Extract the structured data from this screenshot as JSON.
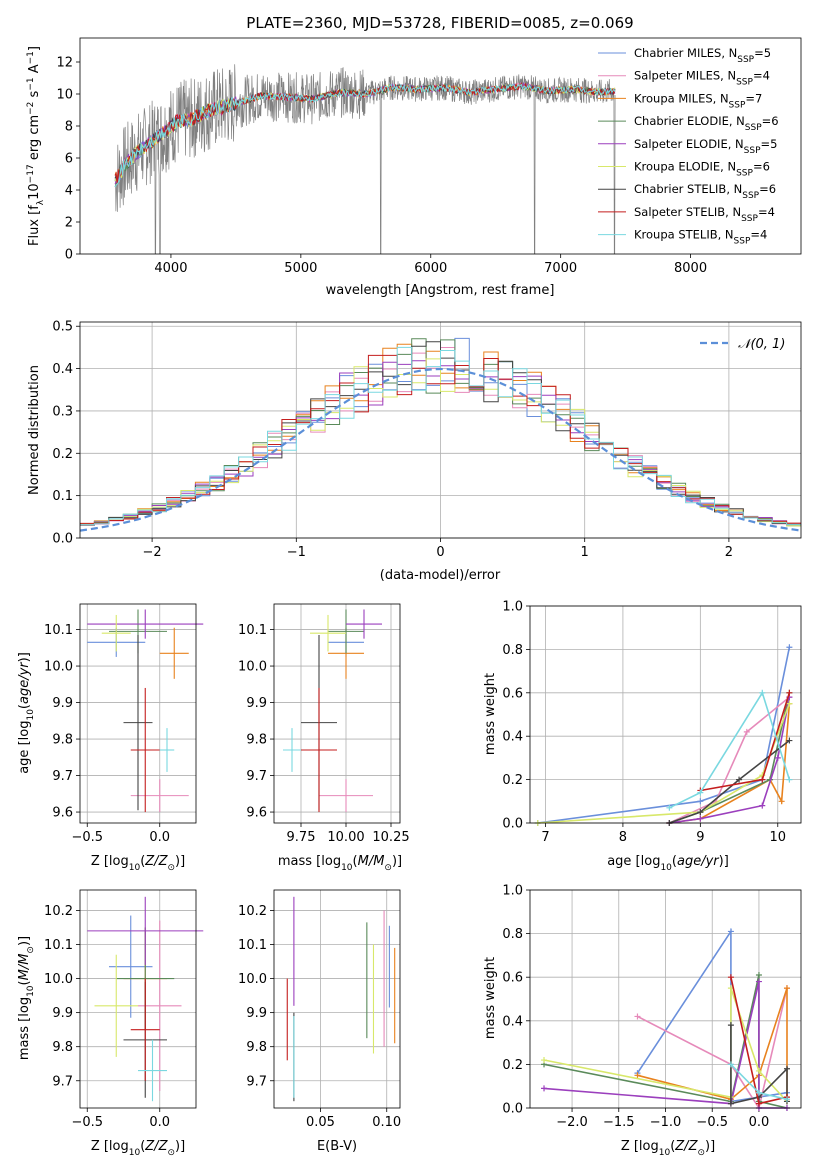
{
  "colors": [
    "#6a8fdb",
    "#e68aba",
    "#e8821e",
    "#5a8a5a",
    "#9b3fbd",
    "#d8e86a",
    "#444444",
    "#c41e1e",
    "#7ad8e0"
  ],
  "chart_data": [
    {
      "type": "line",
      "title": "PLATE=2360, MJD=53728, FIBERID=0085, z=0.069",
      "xlabel": "wavelength [Angstrom, rest frame]",
      "ylabel": "Flux [f_λ10^-17 erg cm^-2 s^-1 A^-1]",
      "xlim": [
        3300,
        8850
      ],
      "ylim": [
        0,
        13.5
      ],
      "xticks": [
        4000,
        5000,
        6000,
        7000,
        8000
      ],
      "yticks": [
        0,
        2,
        4,
        6,
        8,
        10,
        12
      ],
      "grid": false,
      "legend_position": "top-right",
      "observed_spectrum": {
        "color": "#808080",
        "x": [
          3570,
          3650,
          3750,
          3850,
          3950,
          4050,
          4150,
          4300,
          4500,
          4700,
          4900,
          5100,
          5300,
          5500,
          5700,
          5900,
          6100,
          6300,
          6500,
          6700,
          6900,
          7100,
          7300,
          7420
        ],
        "y": [
          4.6,
          5.6,
          6.4,
          7.0,
          7.6,
          8.3,
          8.4,
          9.0,
          9.4,
          9.9,
          9.8,
          9.7,
          10.1,
          10.0,
          10.4,
          10.3,
          10.4,
          10.1,
          10.3,
          10.5,
          10.2,
          10.3,
          10.1,
          10.2
        ]
      },
      "series": [
        {
          "name": "Chabrier MILES, N_SSP=5",
          "label": {
            "main": "Chabrier MILES, N",
            "sub": "SSP",
            "tail": "=5"
          }
        },
        {
          "name": "Salpeter MILES, N_SSP=4",
          "label": {
            "main": "Salpeter MILES, N",
            "sub": "SSP",
            "tail": "=4"
          }
        },
        {
          "name": "Kroupa MILES, N_SSP=7",
          "label": {
            "main": "Kroupa MILES, N",
            "sub": "SSP",
            "tail": "=7"
          }
        },
        {
          "name": "Chabrier ELODIE, N_SSP=6",
          "label": {
            "main": "Chabrier ELODIE, N",
            "sub": "SSP",
            "tail": "=6"
          }
        },
        {
          "name": "Salpeter ELODIE, N_SSP=5",
          "label": {
            "main": "Salpeter ELODIE, N",
            "sub": "SSP",
            "tail": "=5"
          }
        },
        {
          "name": "Kroupa ELODIE, N_SSP=6",
          "label": {
            "main": "Kroupa ELODIE, N",
            "sub": "SSP",
            "tail": "=6"
          }
        },
        {
          "name": "Chabrier STELIB, N_SSP=6",
          "label": {
            "main": "Chabrier STELIB, N",
            "sub": "SSP",
            "tail": "=6"
          }
        },
        {
          "name": "Salpeter STELIB, N_SSP=4",
          "label": {
            "main": "Salpeter STELIB, N",
            "sub": "SSP",
            "tail": "=4"
          }
        },
        {
          "name": "Kroupa STELIB, N_SSP=4",
          "label": {
            "main": "Kroupa STELIB, N",
            "sub": "SSP",
            "tail": "=4"
          }
        }
      ],
      "model_x": [
        3570,
        3650,
        3750,
        3850,
        3950,
        4050,
        4150,
        4300,
        4500,
        4700,
        4900,
        5100,
        5300,
        5500,
        5700,
        5900,
        6100,
        6300,
        6500,
        6700,
        6900,
        7100,
        7300,
        7420
      ],
      "model_y": [
        4.6,
        5.6,
        6.4,
        7.0,
        7.6,
        8.3,
        8.4,
        9.0,
        9.4,
        9.9,
        9.8,
        9.7,
        10.1,
        10.0,
        10.4,
        10.3,
        10.4,
        10.1,
        10.3,
        10.5,
        10.2,
        10.3,
        10.1,
        10.2
      ]
    },
    {
      "type": "histogram",
      "xlabel": "(data-model)/error",
      "ylabel": "Normed distribution",
      "xlim": [
        -2.5,
        2.5
      ],
      "ylim": [
        0,
        0.51
      ],
      "xticks": [
        -2,
        -1,
        0,
        1,
        2
      ],
      "yticks": [
        0.0,
        0.1,
        0.2,
        0.3,
        0.4,
        0.5
      ],
      "grid": true,
      "legend_position": "top-right",
      "reference_curve": {
        "name": "𝒩(0, 1)",
        "color": "#5b8fd8",
        "mean": 0,
        "sigma": 1
      },
      "bin_width": 0.1,
      "bin_start": -2.5
    },
    {
      "type": "scatter",
      "xlabel": "Z [log10(Z/Z⊙)]",
      "ylabel": "age [log10(age/yr)]",
      "xlim": [
        -0.55,
        0.25
      ],
      "ylim": [
        9.57,
        10.17
      ],
      "xticks": [
        -0.5,
        0.0
      ],
      "yticks": [
        9.6,
        9.7,
        9.8,
        9.9,
        10.0,
        10.1
      ],
      "grid": true,
      "points": [
        {
          "x": -0.3,
          "y": 10.065,
          "xerr": 0.2,
          "yerr": 0.04
        },
        {
          "x": 0.0,
          "y": 9.645,
          "xerr": 0.2,
          "yerr": 0.045
        },
        {
          "x": 0.1,
          "y": 10.035,
          "xerr": 0.1,
          "yerr": 0.07
        },
        {
          "x": -0.15,
          "y": 10.095,
          "xerr": 0.2,
          "yerr": 0.06
        },
        {
          "x": -0.1,
          "y": 10.115,
          "xerr": 0.4,
          "yerr": 0.04
        },
        {
          "x": -0.3,
          "y": 10.09,
          "xerr": 0.1,
          "yerr": 0.05
        },
        {
          "x": -0.15,
          "y": 9.845,
          "xerr": 0.1,
          "yerr": 0.24
        },
        {
          "x": -0.1,
          "y": 9.77,
          "xerr": 0.1,
          "yerr": 0.17
        },
        {
          "x": 0.05,
          "y": 9.77,
          "xerr": 0.05,
          "yerr": 0.06
        }
      ]
    },
    {
      "type": "scatter",
      "xlabel": "mass [log10(M/M⊙)]",
      "ylabel": "",
      "xlim": [
        9.6,
        10.3
      ],
      "ylim": [
        9.57,
        10.17
      ],
      "xticks": [
        9.75,
        10.0,
        10.25
      ],
      "yticks": [
        9.6,
        9.7,
        9.8,
        9.9,
        10.0,
        10.1
      ],
      "grid": true,
      "points": [
        {
          "x": 10.0,
          "y": 10.065,
          "xerr": 0.1,
          "yerr": 0.04
        },
        {
          "x": 10.0,
          "y": 9.645,
          "xerr": 0.15,
          "yerr": 0.045
        },
        {
          "x": 10.0,
          "y": 10.035,
          "xerr": 0.1,
          "yerr": 0.07
        },
        {
          "x": 10.0,
          "y": 10.095,
          "xerr": 0.1,
          "yerr": 0.06
        },
        {
          "x": 10.1,
          "y": 10.115,
          "xerr": 0.1,
          "yerr": 0.04
        },
        {
          "x": 9.9,
          "y": 10.09,
          "xerr": 0.1,
          "yerr": 0.05
        },
        {
          "x": 9.85,
          "y": 9.845,
          "xerr": 0.1,
          "yerr": 0.24
        },
        {
          "x": 9.85,
          "y": 9.77,
          "xerr": 0.1,
          "yerr": 0.17
        },
        {
          "x": 9.7,
          "y": 9.77,
          "xerr": 0.05,
          "yerr": 0.06
        }
      ]
    },
    {
      "type": "line",
      "xlabel": "age [log10(age/yr)]",
      "ylabel": "mass weight",
      "xlim": [
        6.8,
        10.3
      ],
      "ylim": [
        0,
        1.0
      ],
      "xticks": [
        7,
        8,
        9,
        10
      ],
      "yticks": [
        0.0,
        0.2,
        0.4,
        0.6,
        0.8,
        1.0
      ],
      "grid": true,
      "series": [
        {
          "x": [
            6.9,
            9.0,
            9.8,
            10.15
          ],
          "y": [
            0.0,
            0.1,
            0.2,
            0.81
          ]
        },
        {
          "x": [
            8.6,
            9.2,
            9.6,
            10.15
          ],
          "y": [
            0.0,
            0.1,
            0.42,
            0.58
          ]
        },
        {
          "x": [
            8.6,
            9.0,
            9.9,
            10.05,
            10.15
          ],
          "y": [
            0.0,
            0.02,
            0.2,
            0.1,
            0.55
          ]
        },
        {
          "x": [
            8.6,
            9.0,
            9.9,
            10.15
          ],
          "y": [
            0.0,
            0.05,
            0.2,
            0.6
          ]
        },
        {
          "x": [
            8.6,
            9.0,
            9.8,
            10.0,
            10.15
          ],
          "y": [
            0.0,
            0.02,
            0.08,
            0.3,
            0.58
          ]
        },
        {
          "x": [
            6.9,
            9.0,
            9.8,
            10.15
          ],
          "y": [
            0.0,
            0.05,
            0.22,
            0.55
          ]
        },
        {
          "x": [
            8.6,
            9.0,
            9.5,
            10.15
          ],
          "y": [
            0.0,
            0.05,
            0.2,
            0.38
          ]
        },
        {
          "x": [
            9.0,
            9.8,
            10.15
          ],
          "y": [
            0.15,
            0.2,
            0.6
          ]
        },
        {
          "x": [
            8.6,
            9.0,
            9.8,
            10.15
          ],
          "y": [
            0.07,
            0.14,
            0.6,
            0.2
          ]
        }
      ]
    },
    {
      "type": "scatter",
      "xlabel": "Z [log10(Z/Z⊙)]",
      "ylabel": "mass [log10(M/M⊙)]",
      "xlim": [
        -0.55,
        0.25
      ],
      "ylim": [
        9.62,
        10.26
      ],
      "xticks": [
        -0.5,
        0.0
      ],
      "yticks": [
        9.7,
        9.8,
        9.9,
        10.0,
        10.1,
        10.2
      ],
      "grid": true,
      "points": [
        {
          "x": -0.2,
          "y": 10.035,
          "xerr": 0.15,
          "yerr": 0.15
        },
        {
          "x": 0.0,
          "y": 9.92,
          "xerr": 0.15,
          "yerr": 0.25
        },
        {
          "x": -0.1,
          "y": 10.0,
          "xerr": 0.15,
          "yerr": 0.15
        },
        {
          "x": -0.1,
          "y": 10.0,
          "xerr": 0.2,
          "yerr": 0.15
        },
        {
          "x": -0.1,
          "y": 10.14,
          "xerr": 0.4,
          "yerr": 0.1
        },
        {
          "x": -0.3,
          "y": 9.92,
          "xerr": 0.15,
          "yerr": 0.15
        },
        {
          "x": -0.1,
          "y": 9.82,
          "xerr": 0.15,
          "yerr": 0.17
        },
        {
          "x": -0.1,
          "y": 9.85,
          "xerr": 0.1,
          "yerr": 0.15
        },
        {
          "x": -0.05,
          "y": 9.73,
          "xerr": 0.1,
          "yerr": 0.09
        }
      ]
    },
    {
      "type": "scatter",
      "xlabel": "E(B-V)",
      "ylabel": "",
      "xlim": [
        0.015,
        0.11
      ],
      "ylim": [
        9.62,
        10.26
      ],
      "xticks": [
        0.05,
        0.1
      ],
      "yticks": [
        9.7,
        9.8,
        9.9,
        10.0,
        10.1,
        10.2
      ],
      "grid": true,
      "points": [
        {
          "x": 0.102,
          "y": 10.035,
          "yerr": 0.12
        },
        {
          "x": 0.098,
          "y": 10.0,
          "yerr": 0.2
        },
        {
          "x": 0.106,
          "y": 9.95,
          "yerr": 0.14
        },
        {
          "x": 0.085,
          "y": 9.995,
          "yerr": 0.17
        },
        {
          "x": 0.03,
          "y": 10.08,
          "yerr": 0.16
        },
        {
          "x": 0.09,
          "y": 9.94,
          "yerr": 0.16
        },
        {
          "x": 0.03,
          "y": 9.77,
          "yerr": 0.13
        },
        {
          "x": 0.025,
          "y": 9.88,
          "yerr": 0.12
        },
        {
          "x": 0.03,
          "y": 9.77,
          "yerr": 0.12
        }
      ]
    },
    {
      "type": "line",
      "xlabel": "Z [log10(Z/Z⊙)]",
      "ylabel": "mass weight",
      "xlim": [
        -2.45,
        0.45
      ],
      "ylim": [
        0,
        1.0
      ],
      "xticks": [
        -2.0,
        -1.5,
        -1.0,
        -0.5,
        0.0
      ],
      "yticks": [
        0.0,
        0.2,
        0.4,
        0.6,
        0.8,
        1.0
      ],
      "grid": true,
      "series": [
        {
          "x": [
            -1.3,
            -0.3,
            -0.3,
            0.3
          ],
          "y": [
            0.16,
            0.81,
            0.03,
            0.07
          ]
        },
        {
          "x": [
            -1.3,
            -0.3,
            0.0,
            0.3
          ],
          "y": [
            0.42,
            0.2,
            0.0,
            0.55
          ]
        },
        {
          "x": [
            -1.3,
            -0.3,
            0.0,
            0.3,
            0.3
          ],
          "y": [
            0.15,
            0.04,
            0.15,
            0.55,
            0.03
          ]
        },
        {
          "x": [
            -2.3,
            -0.3,
            0.0,
            0.0,
            0.3
          ],
          "y": [
            0.2,
            0.03,
            0.61,
            0.03,
            0.0
          ]
        },
        {
          "x": [
            -2.3,
            -0.3,
            0.0,
            0.0,
            0.3
          ],
          "y": [
            0.09,
            0.02,
            0.58,
            0.0,
            0.0
          ]
        },
        {
          "x": [
            -2.3,
            -0.3,
            -0.3,
            0.0,
            0.3
          ],
          "y": [
            0.22,
            0.05,
            0.55,
            0.17,
            0.03
          ]
        },
        {
          "x": [
            -0.3,
            -0.3,
            0.0,
            0.3,
            0.3
          ],
          "y": [
            0.38,
            0.02,
            0.05,
            0.18,
            0.03
          ]
        },
        {
          "x": [
            -0.3,
            0.0,
            0.3
          ],
          "y": [
            0.6,
            0.02,
            0.05
          ]
        },
        {
          "x": [
            -0.3,
            0.0,
            0.3
          ],
          "y": [
            0.2,
            0.07,
            0.04
          ]
        }
      ]
    }
  ]
}
